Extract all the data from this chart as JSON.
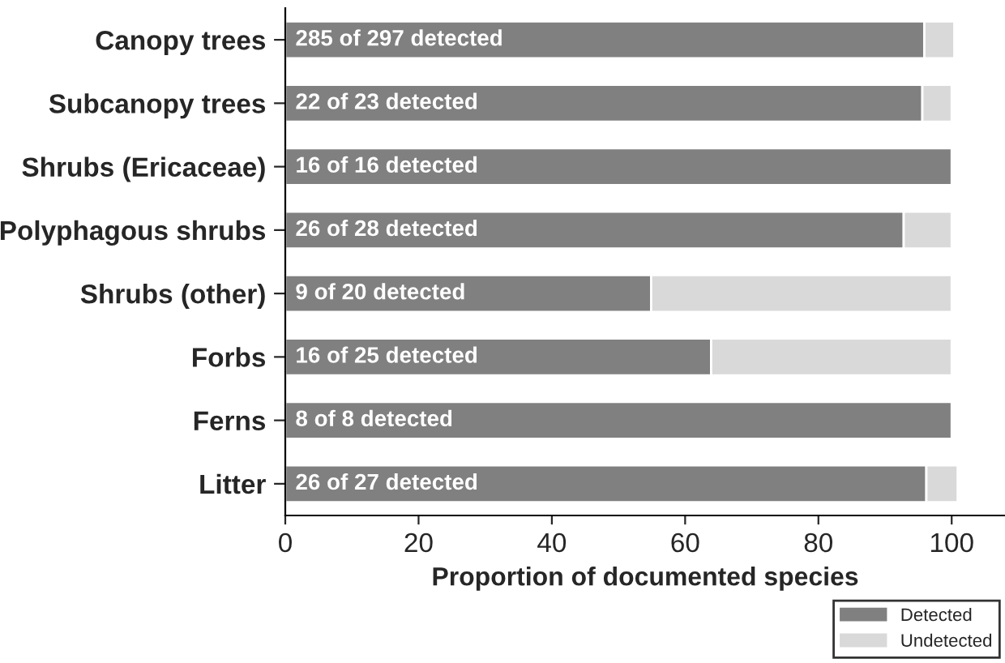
{
  "chart_data": {
    "type": "bar",
    "orientation": "horizontal",
    "stacked": true,
    "categories": [
      "Canopy trees",
      "Subcanopy trees",
      "Shrubs (Ericaceae)",
      "Polyphagous shrubs",
      "Shrubs (other)",
      "Forbs",
      "Ferns",
      "Litter"
    ],
    "series": [
      {
        "name": "Detected",
        "color": "#808080",
        "values": [
          95.9,
          95.6,
          100,
          92.8,
          54.9,
          63.9,
          100,
          96.2
        ]
      },
      {
        "name": "Undetected",
        "color": "#d9d9d9",
        "values": [
          4.5,
          4.4,
          null,
          7.2,
          45.1,
          36.1,
          null,
          4.7
        ]
      }
    ],
    "annotations": [
      "285 of 297 detected",
      "22 of 23 detected",
      "16 of 16 detected",
      "26 of 28 detected",
      "9 of 20 detected",
      "16 of 25 detected",
      "8 of 8 detected",
      "26 of 27 detected"
    ],
    "xlabel": "Proportion of documented species",
    "xlim": [
      0,
      108
    ],
    "xticks": [
      0,
      20,
      40,
      60,
      80,
      100
    ],
    "grid": false,
    "legend": "bottom right"
  }
}
